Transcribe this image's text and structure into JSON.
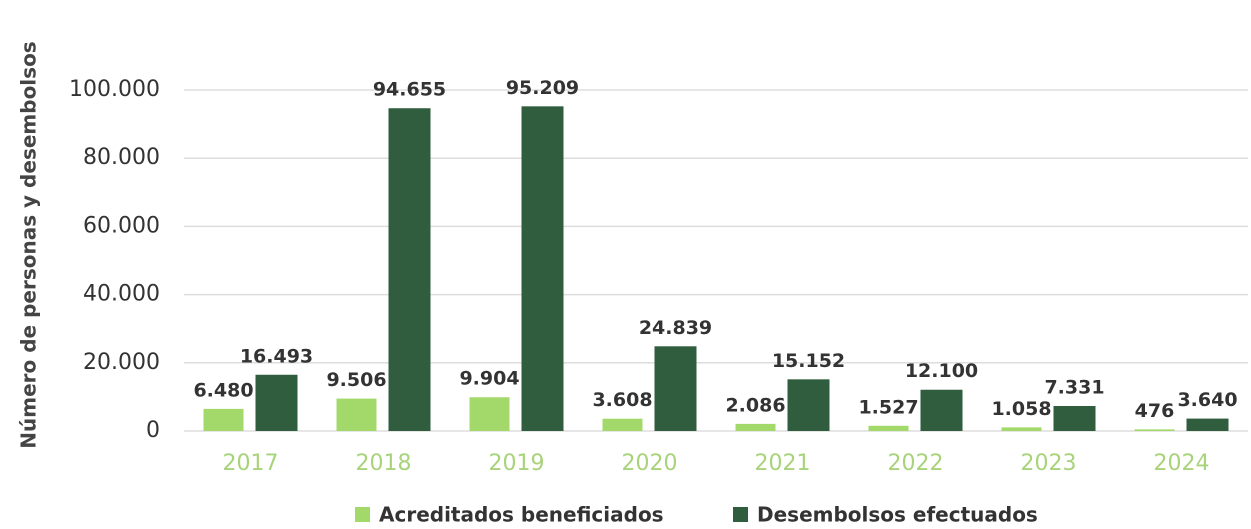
{
  "chart_data": {
    "type": "bar",
    "y_axis_label": "Número de personas y desembolsos",
    "categories": [
      "2017",
      "2018",
      "2019",
      "2020",
      "2021",
      "2022",
      "2023",
      "2024"
    ],
    "series": [
      {
        "name": "Acreditados beneficiados",
        "color": "#a3d96b",
        "values": [
          6480,
          9506,
          9904,
          3608,
          2086,
          1527,
          1058,
          476
        ],
        "value_labels": [
          "6.480",
          "9.506",
          "9.904",
          "3.608",
          "2.086",
          "1.527",
          "1.058",
          "476"
        ]
      },
      {
        "name": "Desembolsos efectuados",
        "color": "#2f5d3e",
        "values": [
          16493,
          94655,
          95209,
          24839,
          15152,
          12100,
          7331,
          3640
        ],
        "value_labels": [
          "16.493",
          "94.655",
          "95.209",
          "24.839",
          "15.152",
          "12.100",
          "7.331",
          "3.640"
        ]
      }
    ],
    "ylim": [
      0,
      100000
    ],
    "yticks": [
      0,
      {
        "value": 20000,
        "label": "20.000"
      },
      {
        "value": 40000,
        "label": "40.000"
      },
      {
        "value": 60000,
        "label": "60.000"
      },
      {
        "value": 80000,
        "label": "80.000"
      },
      {
        "value": 100000,
        "label": "100.000"
      }
    ],
    "grid": true,
    "legend": "bottom"
  }
}
